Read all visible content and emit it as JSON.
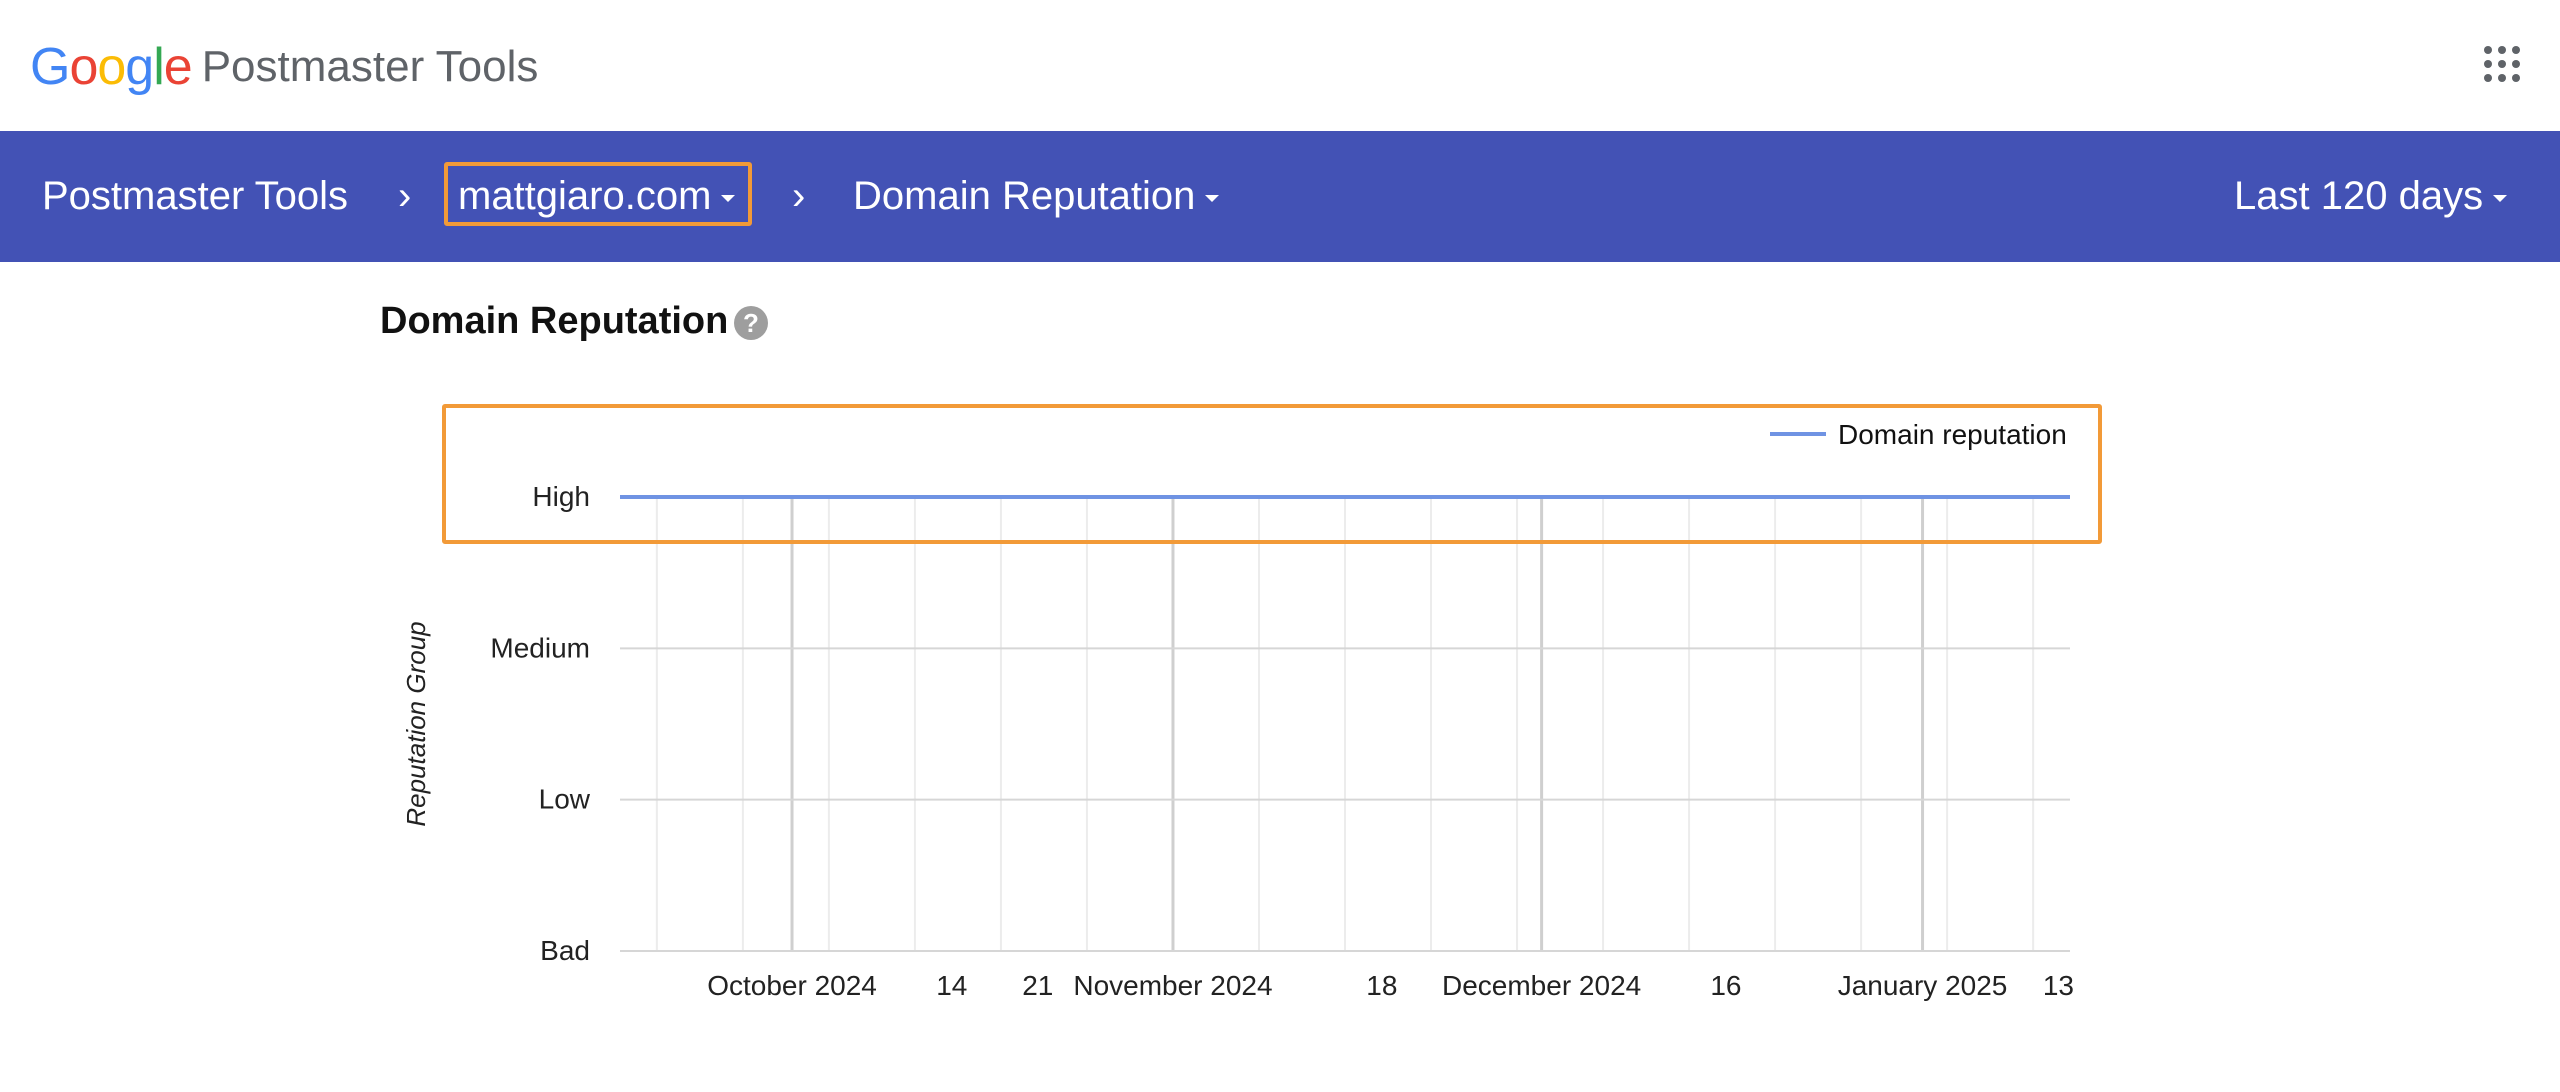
{
  "header": {
    "google_letters": [
      {
        "ch": "G",
        "color": "#4285F4"
      },
      {
        "ch": "o",
        "color": "#EA4335"
      },
      {
        "ch": "o",
        "color": "#FBBC05"
      },
      {
        "ch": "g",
        "color": "#4285F4"
      },
      {
        "ch": "l",
        "color": "#34A853"
      },
      {
        "ch": "e",
        "color": "#EA4335"
      }
    ],
    "product_name": "Postmaster Tools",
    "apps_icon": "apps-grid-icon"
  },
  "breadcrumb": {
    "root": "Postmaster Tools",
    "domain": "mattgiaro.com",
    "page": "Domain Reputation",
    "separator": "›",
    "date_range": "Last 120 days"
  },
  "section": {
    "title": "Domain Reputation",
    "help_icon": "?"
  },
  "colors": {
    "nav_bg": "#4352b5",
    "highlight": "#f29a38",
    "series": "#6f93e3",
    "grid": "#d6d6d6"
  },
  "chart_data": {
    "type": "line",
    "ylabel": "Reputation Group",
    "y_categories": [
      "Bad",
      "Low",
      "Medium",
      "High"
    ],
    "x_tick_labels": [
      "October 2024",
      "14",
      "21",
      "November 2024",
      "18",
      "December 2024",
      "16",
      "January 2025",
      "13"
    ],
    "x_tick_dates": [
      "2024-10-01",
      "2024-10-14",
      "2024-10-21",
      "2024-11-01",
      "2024-11-18",
      "2024-12-01",
      "2024-12-16",
      "2025-01-01",
      "2025-01-13"
    ],
    "x_range": [
      "2024-09-17",
      "2025-01-13"
    ],
    "legend": {
      "position": "top-right",
      "entries": [
        "Domain reputation"
      ]
    },
    "series": [
      {
        "name": "Domain reputation",
        "x": [
          "2024-09-17",
          "2025-01-13"
        ],
        "values": [
          "High",
          "High"
        ]
      }
    ],
    "grid": true
  }
}
